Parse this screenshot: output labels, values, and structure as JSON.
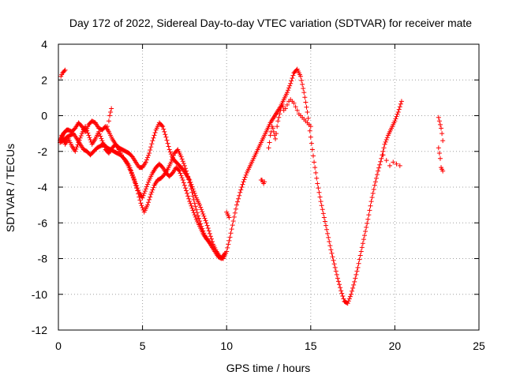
{
  "chart_data": {
    "type": "scatter",
    "title": "Day 172 of 2022, Sidereal Day-to-day VTEC variation (SDTVAR) for receiver mate",
    "xlabel": "GPS time / hours",
    "ylabel": "SDTVAR / TECUs",
    "xlim": [
      0,
      25
    ],
    "ylim": [
      -12,
      4
    ],
    "x_ticks": [
      "0",
      "5",
      "10",
      "15",
      "20",
      "25"
    ],
    "y_ticks": [
      "4",
      "2",
      "0",
      "-2",
      "-4",
      "-6",
      "-8",
      "-10",
      "-12"
    ],
    "grid": true,
    "marker": "+",
    "color": "#ff0000",
    "series": [
      {
        "x": [
          0.1,
          0.2,
          0.3,
          0.4,
          0.5,
          0.6,
          0.8,
          1.0,
          1.2,
          1.4,
          1.6,
          1.8,
          2.0,
          2.2,
          2.4,
          2.6,
          2.8,
          3.0,
          3.2,
          3.4,
          3.6,
          3.8,
          4.0,
          4.2,
          4.4,
          4.6,
          4.8,
          5.0,
          5.2,
          5.4,
          5.6,
          5.8,
          6.0,
          6.2,
          6.4,
          6.6,
          6.8,
          7.0,
          7.2,
          7.4,
          7.6,
          7.8,
          8.0,
          8.2,
          8.4,
          8.6,
          8.8,
          9.0,
          9.2,
          9.4,
          9.6,
          9.8,
          10.0,
          10.2,
          10.4,
          10.6,
          10.8,
          11.0,
          11.2,
          11.4,
          11.6,
          11.8,
          12.0,
          12.2,
          12.4,
          12.6,
          12.8,
          13.0,
          13.2,
          13.4,
          13.6,
          13.8,
          14.0,
          14.2,
          14.4,
          14.6,
          14.8,
          15.0,
          15.2,
          15.4,
          15.6,
          15.8,
          16.0,
          16.2,
          16.4,
          16.6,
          16.8,
          17.0,
          17.2,
          17.4,
          17.6,
          17.8,
          18.0,
          18.2,
          18.4,
          18.6,
          18.8,
          19.0,
          19.2,
          19.4,
          19.6,
          19.8,
          20.0,
          20.2,
          20.4
        ],
        "y": [
          -1.4,
          -1.2,
          -1.0,
          -0.9,
          -0.8,
          -0.8,
          -0.9,
          -0.7,
          -0.4,
          -0.6,
          -0.9,
          -0.5,
          -0.3,
          -0.4,
          -0.7,
          -0.8,
          -0.6,
          -0.9,
          -1.3,
          -1.6,
          -1.8,
          -1.9,
          -2.0,
          -2.1,
          -2.3,
          -2.6,
          -2.9,
          -2.9,
          -2.6,
          -2.1,
          -1.4,
          -0.8,
          -0.4,
          -0.6,
          -1.2,
          -1.9,
          -2.4,
          -2.6,
          -2.8,
          -3.0,
          -3.3,
          -3.6,
          -4.1,
          -4.6,
          -5.0,
          -5.5,
          -6.0,
          -6.6,
          -7.2,
          -7.6,
          -7.9,
          -8.0,
          -7.6,
          -6.8,
          -5.9,
          -5.0,
          -4.3,
          -3.7,
          -3.2,
          -2.8,
          -2.4,
          -2.0,
          -1.6,
          -1.2,
          -0.8,
          -0.4,
          -0.1,
          0.2,
          0.5,
          0.9,
          1.3,
          1.8,
          2.4,
          2.6,
          2.2,
          1.3,
          0.2,
          -1.2,
          -2.6,
          -3.8,
          -4.8,
          -5.7,
          -6.6,
          -7.5,
          -8.3,
          -9.1,
          -9.8,
          -10.4,
          -10.5,
          -10.0,
          -9.3,
          -8.5,
          -7.6,
          -6.7,
          -5.8,
          -4.8,
          -3.9,
          -3.1,
          -2.4,
          -1.6,
          -1.1,
          -0.7,
          -0.3,
          0.2,
          0.8
        ]
      },
      {
        "x": [
          0.1,
          0.3,
          0.5,
          0.7,
          0.9,
          1.1,
          1.3,
          1.5,
          1.7,
          1.9,
          2.1,
          2.3,
          2.5,
          2.7,
          2.9,
          3.1,
          3.3,
          3.5,
          3.7,
          3.9,
          4.1,
          4.3,
          4.5,
          4.7,
          4.9,
          5.1,
          5.3,
          5.5,
          5.7,
          5.9,
          6.1,
          6.3,
          6.5,
          6.7,
          6.9,
          7.1,
          7.3,
          7.5,
          7.7,
          7.9,
          8.1,
          8.3,
          8.5,
          8.7,
          8.9,
          9.1,
          9.3,
          9.5,
          9.7,
          9.9
        ],
        "y": [
          -1.5,
          -1.4,
          -1.2,
          -1.1,
          -1.0,
          -1.3,
          -1.6,
          -1.9,
          -2.0,
          -2.2,
          -2.0,
          -1.8,
          -1.7,
          -1.6,
          -1.8,
          -1.9,
          -2.0,
          -2.1,
          -2.2,
          -2.4,
          -2.7,
          -3.1,
          -3.6,
          -4.2,
          -4.9,
          -5.4,
          -5.0,
          -4.4,
          -3.9,
          -3.6,
          -3.5,
          -3.3,
          -3.0,
          -2.6,
          -2.1,
          -1.9,
          -2.3,
          -2.8,
          -3.4,
          -4.1,
          -4.9,
          -5.6,
          -6.2,
          -6.7,
          -7.0,
          -7.3,
          -7.6,
          -7.9,
          -8.0,
          -7.7
        ]
      },
      {
        "x": [
          0.2,
          0.4,
          0.6,
          0.8,
          1.0,
          1.2,
          1.4,
          1.6,
          1.8,
          2.0,
          2.2,
          2.4,
          2.6,
          2.8,
          3.0,
          3.2,
          3.4,
          3.6,
          3.8,
          4.0,
          4.2,
          4.4,
          4.6,
          4.8,
          5.0,
          5.2,
          5.4,
          5.6,
          5.8,
          6.0,
          6.2,
          6.4,
          6.6,
          6.8,
          7.0,
          7.2,
          7.4,
          7.6,
          7.8,
          8.0,
          8.2,
          8.4,
          8.6,
          8.8,
          9.0
        ],
        "y": [
          -1.1,
          -1.6,
          -1.3,
          -1.7,
          -2.0,
          -1.5,
          -1.0,
          -0.6,
          -1.1,
          -1.6,
          -1.3,
          -0.9,
          -1.4,
          -1.9,
          -2.1,
          -1.8,
          -1.6,
          -1.9,
          -2.3,
          -2.5,
          -2.8,
          -3.3,
          -3.8,
          -4.3,
          -4.6,
          -4.1,
          -3.6,
          -3.2,
          -2.9,
          -2.7,
          -2.9,
          -3.2,
          -3.4,
          -3.2,
          -2.9,
          -3.1,
          -3.6,
          -4.2,
          -4.8,
          -5.3,
          -5.8,
          -6.2,
          -6.6,
          -6.9,
          -7.1
        ]
      },
      {
        "x": [
          0.15,
          0.2,
          0.25,
          0.3,
          0.35,
          0.4,
          2.9,
          3.0,
          3.05,
          3.1,
          3.15,
          10.0,
          10.05,
          10.1,
          10.15,
          12.05,
          12.1,
          12.15,
          12.2,
          12.25,
          12.5,
          12.55,
          12.6,
          12.65,
          12.7,
          12.75,
          12.8,
          12.85,
          12.9,
          12.95,
          13.0,
          13.05,
          13.1,
          13.15,
          13.2,
          13.25,
          13.3,
          13.35,
          13.4,
          13.5,
          13.6,
          13.7,
          13.8,
          13.9,
          14.0,
          14.1,
          14.2,
          14.3,
          14.4,
          14.5,
          14.6,
          14.7,
          14.8,
          14.9,
          15.0,
          19.3,
          19.5,
          19.7,
          19.9,
          20.1,
          20.3,
          22.6,
          22.65,
          22.7,
          22.75,
          22.8,
          22.85,
          22.6,
          22.65,
          22.7,
          22.75,
          22.8,
          22.85
        ],
        "y": [
          2.2,
          2.3,
          2.4,
          2.45,
          2.5,
          2.55,
          -0.6,
          -0.3,
          0.0,
          0.2,
          0.4,
          -5.4,
          -5.5,
          -5.6,
          -5.7,
          -3.6,
          -3.6,
          -3.7,
          -3.8,
          -3.7,
          -1.8,
          -1.5,
          -1.1,
          -0.9,
          -0.6,
          -0.7,
          -0.9,
          -1.1,
          -1.3,
          -1.0,
          -0.6,
          -0.3,
          -0.1,
          0.1,
          0.3,
          0.5,
          0.6,
          0.5,
          0.3,
          0.4,
          0.6,
          0.8,
          0.9,
          0.8,
          0.7,
          0.5,
          0.3,
          0.1,
          0.0,
          -0.1,
          -0.2,
          -0.3,
          -0.4,
          -0.5,
          -0.6,
          -2.2,
          -2.5,
          -2.8,
          -2.6,
          -2.7,
          -2.8,
          -0.1,
          -0.3,
          -0.5,
          -0.7,
          -1.0,
          -1.4,
          -1.8,
          -2.1,
          -2.4,
          -2.9,
          -3.0,
          -3.1
        ]
      }
    ]
  }
}
